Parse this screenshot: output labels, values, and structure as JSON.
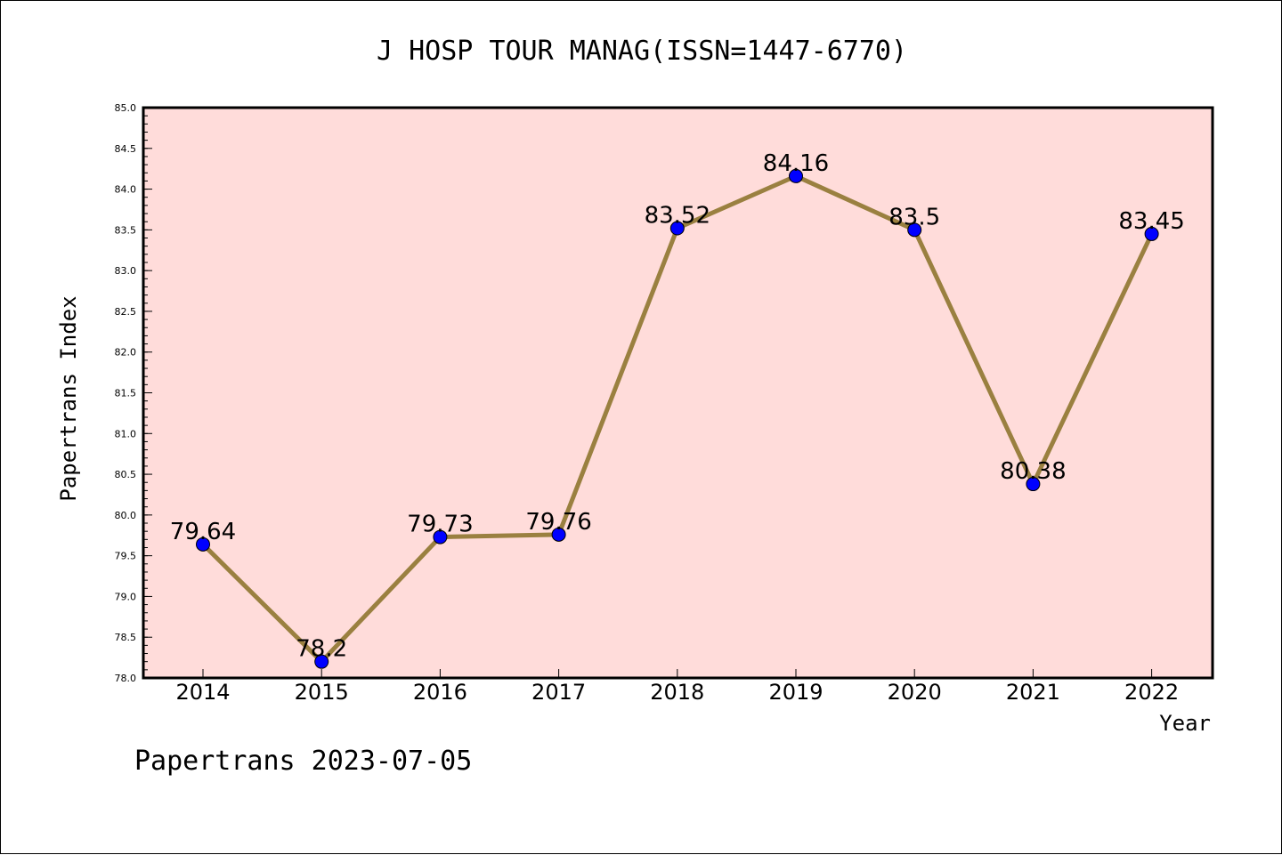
{
  "chart_data": {
    "type": "line",
    "title": "J HOSP TOUR MANAG(ISSN=1447-6770)",
    "xlabel": "Year",
    "ylabel": "Papertrans Index",
    "x": [
      "2014",
      "2015",
      "2016",
      "2017",
      "2018",
      "2019",
      "2020",
      "2021",
      "2022"
    ],
    "values": [
      79.64,
      78.2,
      79.73,
      79.76,
      83.52,
      84.16,
      83.5,
      80.38,
      83.45
    ],
    "data_labels": [
      "79.64",
      "78.2",
      "79.73",
      "79.76",
      "83.52",
      "84.16",
      "83.5",
      "80.38",
      "83.45"
    ],
    "ylim": [
      78.0,
      85.0
    ],
    "yticks": [
      "78.0",
      "78.5",
      "79.0",
      "79.5",
      "80.0",
      "80.5",
      "81.0",
      "81.5",
      "82.0",
      "82.5",
      "83.0",
      "83.5",
      "84.0",
      "84.5",
      "85.0"
    ],
    "grid": false,
    "colors": {
      "plot_background": "#FFDCDA",
      "line": "#9A8040",
      "marker": "#0000FF",
      "axis": "#000000"
    }
  },
  "footer": "Papertrans 2023-07-05"
}
